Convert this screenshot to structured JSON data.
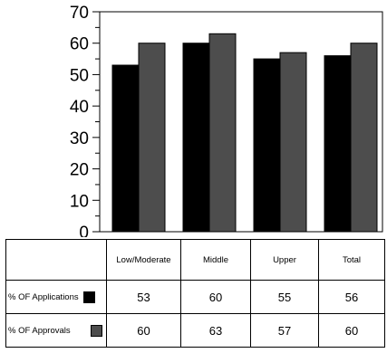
{
  "chart_data": {
    "type": "bar",
    "categories": [
      "Low/Moderate",
      "Middle",
      "Upper",
      "Total"
    ],
    "series": [
      {
        "name": "% OF Applications",
        "values": [
          53,
          60,
          55,
          56
        ],
        "color": "#000000"
      },
      {
        "name": "% OF Approvals",
        "values": [
          60,
          63,
          57,
          60
        ],
        "color": "#4d4d4d"
      }
    ],
    "ylim": [
      0,
      70
    ],
    "yticks": [
      "0",
      "10",
      "20",
      "30",
      "40",
      "50",
      "60",
      "70"
    ],
    "title": "",
    "xlabel": "",
    "ylabel": "",
    "grid": false,
    "legend": "data table below chart"
  }
}
